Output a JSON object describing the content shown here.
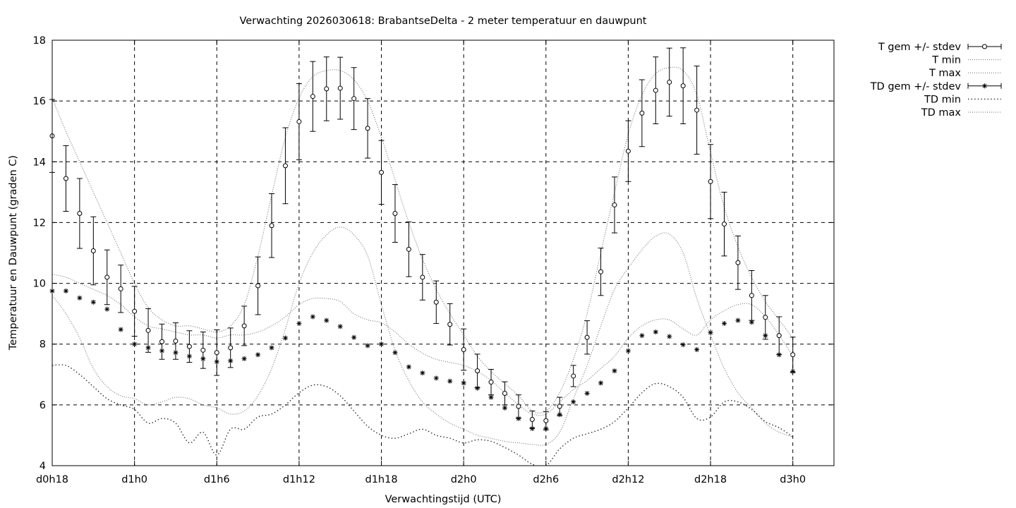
{
  "chart_data": {
    "type": "line",
    "title": "Verwachting 2026030618: BrabantseDelta - 2 meter temperatuur en dauwpunt",
    "xlabel": "Verwachtingstijd (UTC)",
    "ylabel": "Temperatuur en Dauwpunt (graden C)",
    "xlim": [
      18,
      75
    ],
    "ylim": [
      4,
      18
    ],
    "yticks": [
      4,
      6,
      8,
      10,
      12,
      14,
      16,
      18
    ],
    "xticks": [
      {
        "x": 18,
        "label": "d0h18"
      },
      {
        "x": 24,
        "label": "d1h0"
      },
      {
        "x": 30,
        "label": "d1h6"
      },
      {
        "x": 36,
        "label": "d1h12"
      },
      {
        "x": 42,
        "label": "d1h18"
      },
      {
        "x": 48,
        "label": "d2h0"
      },
      {
        "x": 54,
        "label": "d2h6"
      },
      {
        "x": 60,
        "label": "d2h12"
      },
      {
        "x": 66,
        "label": "d2h18"
      },
      {
        "x": 72,
        "label": "d3h0"
      }
    ],
    "grid": true,
    "legend_position": "outside-top-right",
    "legend": [
      "T gem +/- stdev",
      "T min",
      "T max",
      "TD gem +/- stdev",
      "TD min",
      "TD max"
    ],
    "x": [
      18,
      19,
      20,
      21,
      22,
      23,
      24,
      25,
      26,
      27,
      28,
      29,
      30,
      31,
      32,
      33,
      34,
      35,
      36,
      37,
      38,
      39,
      40,
      41,
      42,
      43,
      44,
      45,
      46,
      47,
      48,
      49,
      50,
      51,
      52,
      53,
      54,
      55,
      56,
      57,
      58,
      59,
      60,
      61,
      62,
      63,
      64,
      65,
      66,
      67,
      68,
      69,
      70,
      71,
      72
    ],
    "series": [
      {
        "name": "T gem +/- stdev",
        "marker": "circle",
        "values": [
          14.85,
          13.45,
          12.3,
          11.07,
          10.2,
          9.82,
          9.08,
          8.45,
          8.08,
          8.1,
          7.92,
          7.8,
          7.72,
          7.88,
          8.6,
          9.92,
          11.9,
          13.87,
          15.32,
          16.15,
          16.4,
          16.42,
          16.08,
          15.1,
          13.65,
          12.3,
          11.12,
          10.2,
          9.38,
          8.65,
          7.82,
          7.12,
          6.75,
          6.38,
          5.95,
          5.52,
          5.48,
          5.95,
          6.95,
          8.22,
          10.38,
          12.58,
          14.35,
          15.6,
          16.35,
          16.62,
          16.5,
          15.7,
          13.35,
          11.95,
          10.68,
          9.6,
          8.88,
          8.28,
          7.65
        ],
        "stdev": [
          1.2,
          1.08,
          1.15,
          1.12,
          0.9,
          0.78,
          0.82,
          0.72,
          0.58,
          0.6,
          0.52,
          0.6,
          0.75,
          0.65,
          0.65,
          0.95,
          1.05,
          1.25,
          1.25,
          1.15,
          1.05,
          1.02,
          1.02,
          0.98,
          1.05,
          0.95,
          0.9,
          0.75,
          0.7,
          0.68,
          0.68,
          0.55,
          0.42,
          0.38,
          0.38,
          0.28,
          0.3,
          0.3,
          0.35,
          0.55,
          0.78,
          0.92,
          1.0,
          1.1,
          1.1,
          1.12,
          1.25,
          1.45,
          1.22,
          1.05,
          0.88,
          0.82,
          0.72,
          0.62,
          0.58
        ]
      },
      {
        "name": "T min",
        "line": "dotted",
        "values": [
          9.6,
          9.0,
          8.2,
          7.2,
          6.6,
          6.3,
          6.2,
          6.0,
          6.1,
          6.25,
          6.2,
          6.0,
          5.9,
          5.7,
          5.8,
          6.3,
          7.2,
          8.5,
          10.0,
          11.0,
          11.6,
          11.85,
          11.6,
          10.9,
          9.3,
          7.8,
          6.8,
          6.1,
          5.7,
          5.4,
          5.2,
          5.0,
          4.9,
          4.8,
          4.75,
          4.7,
          4.7,
          5.1,
          6.2,
          7.3,
          8.6,
          9.8,
          10.5,
          11.1,
          11.55,
          11.62,
          11.0,
          9.5,
          8.3,
          7.2,
          6.4,
          5.9,
          5.4,
          5.1,
          4.95
        ]
      },
      {
        "name": "T max",
        "line": "dotted",
        "values": [
          16.1,
          15.0,
          14.0,
          13.0,
          12.0,
          11.0,
          10.0,
          9.2,
          8.8,
          8.6,
          8.6,
          8.5,
          8.4,
          8.6,
          9.3,
          10.9,
          12.9,
          14.8,
          16.1,
          16.8,
          17.0,
          17.0,
          16.7,
          16.0,
          14.8,
          13.4,
          12.0,
          10.8,
          9.8,
          9.0,
          8.3,
          7.6,
          7.1,
          6.7,
          6.3,
          5.8,
          5.8,
          6.4,
          7.5,
          9.0,
          11.0,
          13.0,
          14.9,
          16.2,
          16.9,
          17.1,
          17.0,
          16.2,
          14.3,
          12.5,
          11.2,
          10.2,
          9.4,
          8.8,
          8.2
        ]
      },
      {
        "name": "TD gem +/- stdev",
        "marker": "asterisk",
        "values": [
          9.75,
          9.75,
          9.52,
          9.38,
          9.15,
          8.48,
          8.0,
          7.88,
          7.78,
          7.72,
          7.6,
          7.52,
          7.42,
          7.45,
          7.52,
          7.65,
          7.88,
          8.2,
          8.68,
          8.9,
          8.78,
          8.58,
          8.22,
          7.95,
          8.0,
          7.72,
          7.25,
          7.05,
          6.88,
          6.78,
          6.72,
          6.55,
          6.25,
          5.9,
          5.55,
          5.22,
          5.22,
          5.68,
          6.1,
          6.38,
          6.72,
          7.12,
          7.78,
          8.28,
          8.4,
          8.25,
          7.98,
          7.82,
          8.38,
          8.68,
          8.78,
          8.72,
          8.28,
          7.65,
          7.1
        ]
      },
      {
        "name": "TD min",
        "line": "dotted-sparse",
        "values": [
          7.3,
          7.3,
          7.0,
          6.6,
          6.2,
          6.0,
          5.85,
          5.4,
          5.55,
          5.4,
          4.75,
          5.1,
          4.35,
          5.2,
          5.2,
          5.6,
          5.7,
          6.0,
          6.4,
          6.65,
          6.6,
          6.3,
          5.8,
          5.3,
          5.0,
          4.9,
          5.05,
          5.2,
          5.0,
          4.9,
          4.75,
          4.85,
          4.8,
          4.6,
          4.35,
          4.05,
          4.0,
          4.55,
          4.9,
          5.05,
          5.2,
          5.45,
          5.9,
          6.4,
          6.7,
          6.6,
          6.25,
          5.55,
          5.6,
          6.1,
          6.1,
          5.85,
          5.45,
          5.25,
          4.95
        ]
      },
      {
        "name": "TD max",
        "line": "dotted",
        "values": [
          10.3,
          10.2,
          10.0,
          9.8,
          9.6,
          9.3,
          8.9,
          8.6,
          8.5,
          8.4,
          8.3,
          8.3,
          8.2,
          8.3,
          8.3,
          8.4,
          8.6,
          8.9,
          9.3,
          9.5,
          9.5,
          9.4,
          9.0,
          8.8,
          8.7,
          8.4,
          8.0,
          7.7,
          7.5,
          7.4,
          7.3,
          7.1,
          6.8,
          6.4,
          6.0,
          5.7,
          5.7,
          6.1,
          6.5,
          6.8,
          7.2,
          7.6,
          8.2,
          8.6,
          8.8,
          8.8,
          8.5,
          8.3,
          8.8,
          9.1,
          9.3,
          9.3,
          8.9,
          8.3,
          7.6
        ]
      }
    ]
  }
}
